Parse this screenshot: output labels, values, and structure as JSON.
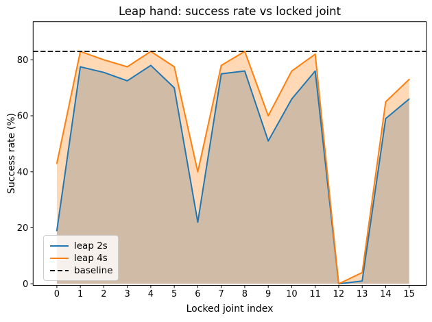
{
  "chart_data": {
    "type": "line",
    "title": "Leap hand: success rate vs locked joint",
    "xlabel": "Locked joint index",
    "ylabel": "Success rate (%)",
    "x": [
      0,
      1,
      2,
      3,
      4,
      5,
      6,
      7,
      8,
      9,
      10,
      11,
      12,
      13,
      14,
      15
    ],
    "series": [
      {
        "name": "leap 2s",
        "color": "#1f77b4",
        "fill": "rgba(31,119,180,0.30)",
        "values": [
          19,
          77.5,
          75.5,
          72.5,
          78,
          70,
          22,
          75,
          76,
          51,
          66,
          76,
          0,
          1,
          59,
          66
        ]
      },
      {
        "name": "leap 4s",
        "color": "#ff7f0e",
        "fill": "rgba(255,127,14,0.30)",
        "values": [
          43,
          83,
          80,
          77.5,
          83,
          77.5,
          40,
          78,
          83,
          60,
          76,
          82,
          0,
          4,
          65,
          73
        ]
      }
    ],
    "baseline": {
      "label": "baseline",
      "value": 83,
      "color": "#000000",
      "style": "dashed"
    },
    "x_ticks": [
      0,
      1,
      2,
      3,
      4,
      5,
      6,
      7,
      8,
      9,
      10,
      11,
      12,
      13,
      14,
      15
    ],
    "y_ticks": [
      0,
      20,
      40,
      60,
      80
    ],
    "xlim": [
      -1.01,
      15.73
    ],
    "ylim": [
      -0.55,
      93.6
    ],
    "grid": false,
    "legend_position": "lower left",
    "fill_to_zero": true
  }
}
